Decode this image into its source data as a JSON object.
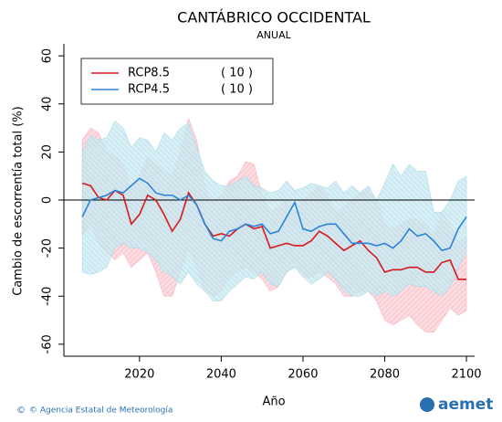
{
  "chart_data": {
    "type": "line",
    "title": "CANTÁBRICO OCCIDENTAL",
    "subtitle": "ANUAL",
    "x_label": "Año",
    "y_label": "Cambio de escorrentía total (%)",
    "footer": "© Agencia Estatal de Meteorología",
    "logo": "aemet",
    "xlim": [
      2001.5,
      2102
    ],
    "xticks": [
      2020,
      2040,
      2060,
      2080,
      2100
    ],
    "ylim": [
      -65,
      65
    ],
    "yticks": [
      60,
      40,
      20,
      0,
      -20,
      -40,
      -60
    ],
    "hline": 0,
    "legend": "upper-left",
    "x": [
      2006,
      2008,
      2010,
      2012,
      2014,
      2016,
      2018,
      2020,
      2022,
      2024,
      2026,
      2028,
      2030,
      2032,
      2034,
      2036,
      2038,
      2040,
      2042,
      2044,
      2046,
      2048,
      2050,
      2052,
      2054,
      2056,
      2058,
      2060,
      2062,
      2064,
      2066,
      2068,
      2070,
      2072,
      2074,
      2076,
      2078,
      2080,
      2082,
      2084,
      2086,
      2088,
      2090,
      2092,
      2094,
      2096,
      2098,
      2100
    ],
    "series": [
      {
        "name": "RCP8.5",
        "legend_note": "( 10 )",
        "color": "#d7191c",
        "band_color": "#f4a6b4",
        "values": [
          7,
          6,
          1,
          0,
          4,
          2,
          -10,
          -6,
          2,
          0,
          -6,
          -13,
          -8,
          3,
          -2,
          -10,
          -15,
          -14,
          -15,
          -12,
          -10,
          -12,
          -11,
          -20,
          -19,
          -18,
          -19,
          -19,
          -17,
          -13,
          -15,
          -18,
          -21,
          -19,
          -17,
          -21,
          -24,
          -30,
          -29,
          -29,
          -28,
          -28,
          -30,
          -30,
          -26,
          -25,
          -33,
          -33
        ],
        "upper": [
          25,
          30,
          28,
          20,
          18,
          15,
          5,
          10,
          18,
          15,
          12,
          10,
          20,
          34,
          25,
          5,
          0,
          2,
          8,
          10,
          16,
          15,
          2,
          -5,
          -3,
          0,
          -5,
          0,
          3,
          6,
          2,
          -5,
          -3,
          0,
          3,
          5,
          0,
          -10,
          -12,
          -10,
          -8,
          -8,
          -10,
          -15,
          -5,
          -10,
          -18,
          -15
        ],
        "lower": [
          -15,
          -10,
          -18,
          -22,
          -25,
          -22,
          -28,
          -25,
          -22,
          -30,
          -40,
          -40,
          -30,
          -20,
          -28,
          -38,
          -40,
          -38,
          -32,
          -30,
          -28,
          -30,
          -33,
          -38,
          -36,
          -30,
          -28,
          -32,
          -32,
          -30,
          -32,
          -35,
          -40,
          -40,
          -38,
          -38,
          -42,
          -50,
          -52,
          -50,
          -48,
          -52,
          -55,
          -55,
          -50,
          -45,
          -48,
          -46
        ]
      },
      {
        "name": "RCP4.5",
        "legend_note": "( 10 )",
        "color": "#2b83d9",
        "band_color": "#9fd6e3",
        "values": [
          -7,
          0,
          1,
          2,
          4,
          3,
          6,
          9,
          7,
          3,
          2,
          2,
          0,
          2,
          -2,
          -10,
          -16,
          -17,
          -13,
          -12,
          -10,
          -11,
          -10,
          -14,
          -13,
          -7,
          -1,
          -12,
          -13,
          -11,
          -10,
          -10,
          -14,
          -18,
          -18,
          -18,
          -19,
          -18,
          -20,
          -17,
          -12,
          -15,
          -14,
          -17,
          -21,
          -20,
          -12,
          -7
        ],
        "upper": [
          20,
          27,
          25,
          26,
          33,
          30,
          22,
          26,
          25,
          20,
          28,
          25,
          30,
          32,
          22,
          12,
          8,
          6,
          6,
          8,
          10,
          6,
          5,
          3,
          4,
          8,
          4,
          5,
          7,
          6,
          5,
          8,
          3,
          6,
          3,
          6,
          0,
          7,
          15,
          10,
          15,
          12,
          12,
          -5,
          -5,
          0,
          8,
          10
        ],
        "lower": [
          -30,
          -31,
          -30,
          -28,
          -20,
          -18,
          -20,
          -20,
          -22,
          -25,
          -30,
          -32,
          -35,
          -30,
          -35,
          -38,
          -42,
          -42,
          -38,
          -35,
          -32,
          -33,
          -30,
          -35,
          -36,
          -30,
          -28,
          -32,
          -35,
          -33,
          -30,
          -33,
          -38,
          -40,
          -40,
          -38,
          -40,
          -38,
          -40,
          -38,
          -35,
          -36,
          -36,
          -38,
          -40,
          -36,
          -28,
          -22
        ]
      }
    ]
  }
}
